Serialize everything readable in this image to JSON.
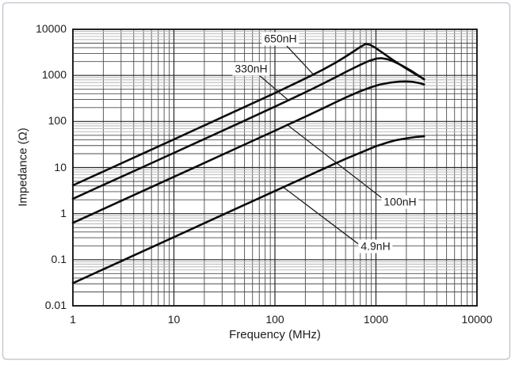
{
  "chart_data": {
    "type": "line",
    "title": "",
    "xlabel": "Frequency (MHz)",
    "ylabel": "Impedance (Ω)",
    "x_axis": {
      "label": "Frequency (MHz)",
      "scale": "log",
      "min": 1,
      "max": 10000,
      "ticks": [
        "1",
        "10",
        "100",
        "1000",
        "10000"
      ]
    },
    "y_axis": {
      "label": "Impedance (Ω)",
      "scale": "log",
      "min": 0.01,
      "max": 10000,
      "ticks": [
        "10000",
        "1000",
        "100",
        "10",
        "1",
        "0.1",
        "0.01"
      ]
    },
    "grid": "log-log major and minor gridlines on",
    "legend_position": "inline-annotations",
    "colors": {
      "curve": "#0d0d0d",
      "grid_major": "#262626",
      "grid_minor": "#4d4d4d",
      "grid_minor_light": "#bcbcbc",
      "frame": "#111111",
      "leader": "#222222",
      "border": "#c6cad1"
    },
    "series": [
      {
        "name": "650nH",
        "points": [
          [
            1,
            4.1
          ],
          [
            2,
            8.2
          ],
          [
            5,
            20.5
          ],
          [
            10,
            41
          ],
          [
            20,
            82
          ],
          [
            50,
            206
          ],
          [
            100,
            415
          ],
          [
            200,
            855
          ],
          [
            300,
            1340
          ],
          [
            400,
            1900
          ],
          [
            500,
            2550
          ],
          [
            600,
            3300
          ],
          [
            700,
            4150
          ],
          [
            790,
            4800
          ],
          [
            880,
            4600
          ],
          [
            1000,
            3900
          ],
          [
            1200,
            2950
          ],
          [
            1500,
            2100
          ],
          [
            1900,
            1500
          ],
          [
            2400,
            1100
          ],
          [
            3000,
            830
          ]
        ]
      },
      {
        "name": "330nH",
        "points": [
          [
            1,
            2.1
          ],
          [
            2,
            4.2
          ],
          [
            5,
            10.4
          ],
          [
            10,
            20.8
          ],
          [
            20,
            41.6
          ],
          [
            50,
            104
          ],
          [
            100,
            210
          ],
          [
            200,
            430
          ],
          [
            300,
            665
          ],
          [
            400,
            915
          ],
          [
            500,
            1180
          ],
          [
            600,
            1440
          ],
          [
            700,
            1700
          ],
          [
            850,
            2050
          ],
          [
            1000,
            2300
          ],
          [
            1120,
            2370
          ],
          [
            1300,
            2250
          ],
          [
            1500,
            2000
          ],
          [
            1800,
            1650
          ],
          [
            2200,
            1280
          ],
          [
            2600,
            1010
          ],
          [
            3000,
            820
          ]
        ]
      },
      {
        "name": "100nH",
        "points": [
          [
            1,
            0.63
          ],
          [
            2,
            1.26
          ],
          [
            5,
            3.15
          ],
          [
            10,
            6.3
          ],
          [
            20,
            12.6
          ],
          [
            50,
            31.5
          ],
          [
            100,
            63
          ],
          [
            200,
            127
          ],
          [
            300,
            193
          ],
          [
            400,
            262
          ],
          [
            500,
            330
          ],
          [
            700,
            455
          ],
          [
            900,
            555
          ],
          [
            1100,
            635
          ],
          [
            1400,
            700
          ],
          [
            1700,
            730
          ],
          [
            2000,
            738
          ],
          [
            2300,
            725
          ],
          [
            2700,
            680
          ],
          [
            3000,
            635
          ]
        ]
      },
      {
        "name": "4.9nH",
        "points": [
          [
            1,
            0.031
          ],
          [
            2,
            0.062
          ],
          [
            5,
            0.155
          ],
          [
            10,
            0.31
          ],
          [
            20,
            0.62
          ],
          [
            50,
            1.55
          ],
          [
            100,
            3.1
          ],
          [
            200,
            6.2
          ],
          [
            300,
            9.3
          ],
          [
            500,
            15.4
          ],
          [
            700,
            21
          ],
          [
            1000,
            29
          ],
          [
            1300,
            35
          ],
          [
            1600,
            39.5
          ],
          [
            2000,
            43
          ],
          [
            2500,
            46
          ],
          [
            3000,
            47.5
          ]
        ]
      }
    ],
    "annotations": [
      {
        "label": "650nH",
        "text_at": [
          113,
          6200
        ],
        "line_from": [
          131,
          4350
        ],
        "line_to": [
          245,
          1000
        ]
      },
      {
        "label": "330nH",
        "text_at": [
          58,
          1370
        ],
        "line_from": [
          70,
          1000
        ],
        "line_to": [
          138,
          281
        ]
      },
      {
        "label": "100nH",
        "text_at": [
          1730,
          1.82
        ],
        "line_from": [
          1190,
          2.04
        ],
        "line_to": [
          133,
          84
        ]
      },
      {
        "label": "4.9nH",
        "text_at": [
          990,
          0.196
        ],
        "line_from": [
          667,
          0.221
        ],
        "line_to": [
          122,
          3.7
        ]
      }
    ]
  }
}
